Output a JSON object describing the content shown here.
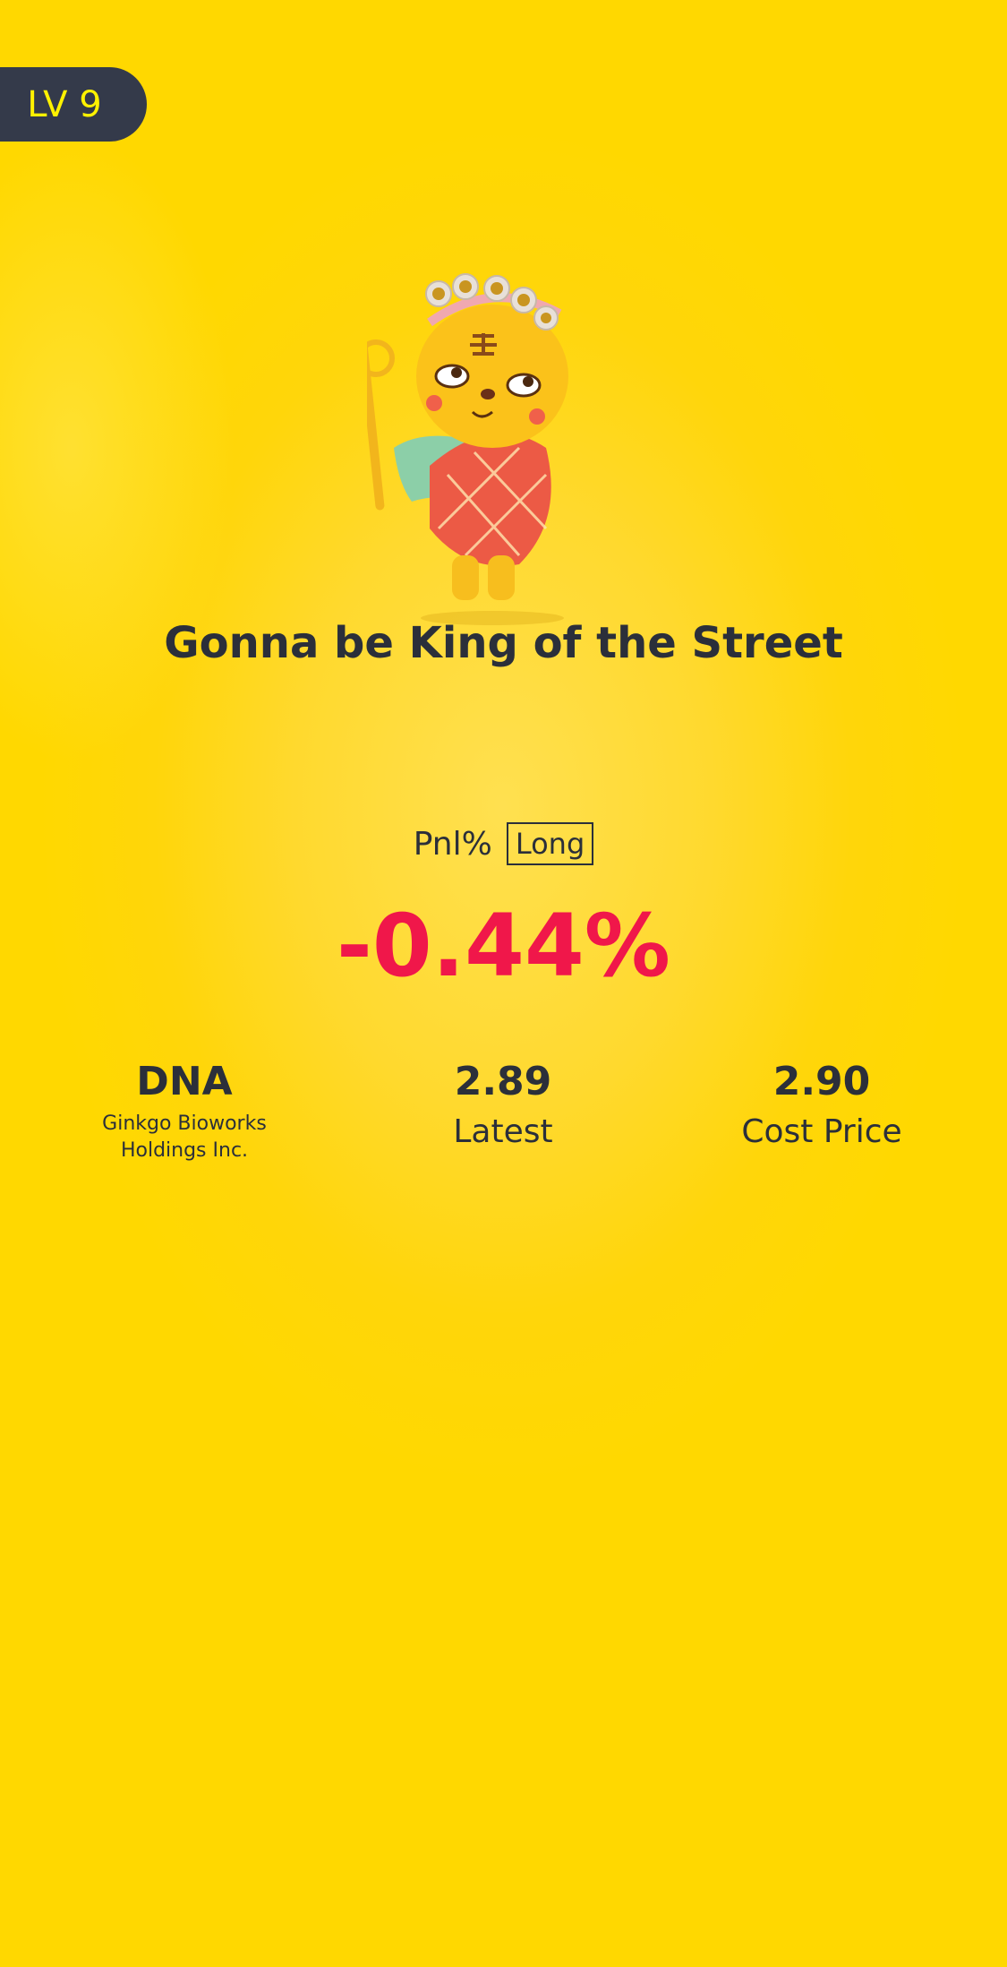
{
  "level_badge": "LV 9",
  "title": "Gonna be King of the Street",
  "pnl": {
    "label": "Pnl%",
    "direction": "Long",
    "value": "-0.44%",
    "value_color": "#f0174a"
  },
  "stock": {
    "symbol": "DNA",
    "name_line1": "Ginkgo Bioworks",
    "name_line2": "Holdings Inc."
  },
  "latest": {
    "value": "2.89",
    "label": "Latest"
  },
  "cost": {
    "value": "2.90",
    "label": "Cost Price"
  },
  "colors": {
    "background": "#ffd800",
    "badge": "#343a4a",
    "badge_text": "#fff200",
    "text": "#2b2f3a"
  }
}
